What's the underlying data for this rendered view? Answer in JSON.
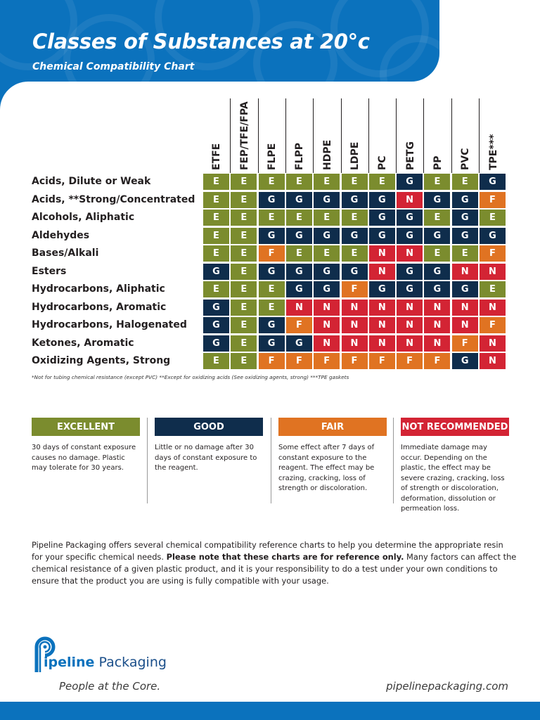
{
  "header": {
    "title": "Classes of Substances at 20°c",
    "subtitle": "Chemical Compatibility Chart"
  },
  "table": {
    "columns": [
      "ETFE",
      "FEP/TFE/FPA",
      "FLPE",
      "FLPP",
      "HDPE",
      "LDPE",
      "PC",
      "PETG",
      "PP",
      "PVC",
      "TPE***"
    ],
    "rows": [
      {
        "label": "Acids, Dilute or Weak",
        "values": [
          "E",
          "E",
          "E",
          "E",
          "E",
          "E",
          "E",
          "G",
          "E",
          "E",
          "G"
        ]
      },
      {
        "label": "Acids, **Strong/Concentrated",
        "values": [
          "E",
          "E",
          "G",
          "G",
          "G",
          "G",
          "G",
          "N",
          "G",
          "G",
          "F"
        ]
      },
      {
        "label": "Alcohols, Aliphatic",
        "values": [
          "E",
          "E",
          "E",
          "E",
          "E",
          "E",
          "G",
          "G",
          "E",
          "G",
          "E"
        ]
      },
      {
        "label": "Aldehydes",
        "values": [
          "E",
          "E",
          "G",
          "G",
          "G",
          "G",
          "G",
          "G",
          "G",
          "G",
          "G"
        ]
      },
      {
        "label": "Bases/Alkali",
        "values": [
          "E",
          "E",
          "F",
          "E",
          "E",
          "E",
          "N",
          "N",
          "E",
          "E",
          "F"
        ]
      },
      {
        "label": "Esters",
        "values": [
          "G",
          "E",
          "G",
          "G",
          "G",
          "G",
          "N",
          "G",
          "G",
          "N",
          "N"
        ]
      },
      {
        "label": "Hydrocarbons, Aliphatic",
        "values": [
          "E",
          "E",
          "E",
          "G",
          "G",
          "F",
          "G",
          "G",
          "G",
          "G",
          "E"
        ]
      },
      {
        "label": "Hydrocarbons, Aromatic",
        "values": [
          "G",
          "E",
          "E",
          "N",
          "N",
          "N",
          "N",
          "N",
          "N",
          "N",
          "N"
        ]
      },
      {
        "label": "Hydrocarbons, Halogenated",
        "values": [
          "G",
          "E",
          "G",
          "F",
          "N",
          "N",
          "N",
          "N",
          "N",
          "N",
          "F"
        ]
      },
      {
        "label": "Ketones, Aromatic",
        "values": [
          "G",
          "E",
          "G",
          "G",
          "N",
          "N",
          "N",
          "N",
          "N",
          "F",
          "N"
        ]
      },
      {
        "label": "Oxidizing Agents, Strong",
        "values": [
          "E",
          "E",
          "F",
          "F",
          "F",
          "F",
          "F",
          "F",
          "F",
          "G",
          "N"
        ]
      }
    ],
    "footnote": "*Not for tubing chemical resistance (except PVC)     **Except for oxidizing acids (See oxidizing agents, strong)     ***TPE gaskets"
  },
  "legend": [
    {
      "label": "EXCELLENT",
      "color": "#7b8c2e",
      "description": "30 days of constant exposure causes no damage. Plastic may tolerate for 30 years."
    },
    {
      "label": "GOOD",
      "color": "#0f2d4c",
      "description": "Little or no damage after 30 days of constant exposure to the reagent."
    },
    {
      "label": "FAIR",
      "color": "#e07322",
      "description": "Some effect after 7 days of constant exposure to the reagent. The effect may be crazing, cracking, loss of strength or discoloration."
    },
    {
      "label": "NOT RECOMMENDED",
      "color": "#d32434",
      "description": "Immediate damage may occur. Depending on the plastic, the effect may be severe crazing, cracking, loss of strength or discoloration, deformation, dissolution or permeation loss."
    }
  ],
  "disclaimer": {
    "part1": "Pipeline Packaging offers several chemical compatibility reference charts to help you determine the appropriate resin for your specific chemical needs. ",
    "bold": "Please note that these charts are for reference only.",
    "part2": " Many factors can affect the chemical resistance of a given plastic product, and it is your responsibility to do a test under your own conditions to ensure that the product you are using is fully compatible with your usage."
  },
  "footer": {
    "brand_pipeline": "ipeline",
    "brand_packaging": " Packaging",
    "tagline": "People at the Core.",
    "website": "pipelinepackaging.com"
  },
  "colors": {
    "brand_blue": "#0b72bd",
    "E": "#7b8c2e",
    "G": "#0f2d4c",
    "F": "#e07322",
    "N": "#d32434"
  }
}
